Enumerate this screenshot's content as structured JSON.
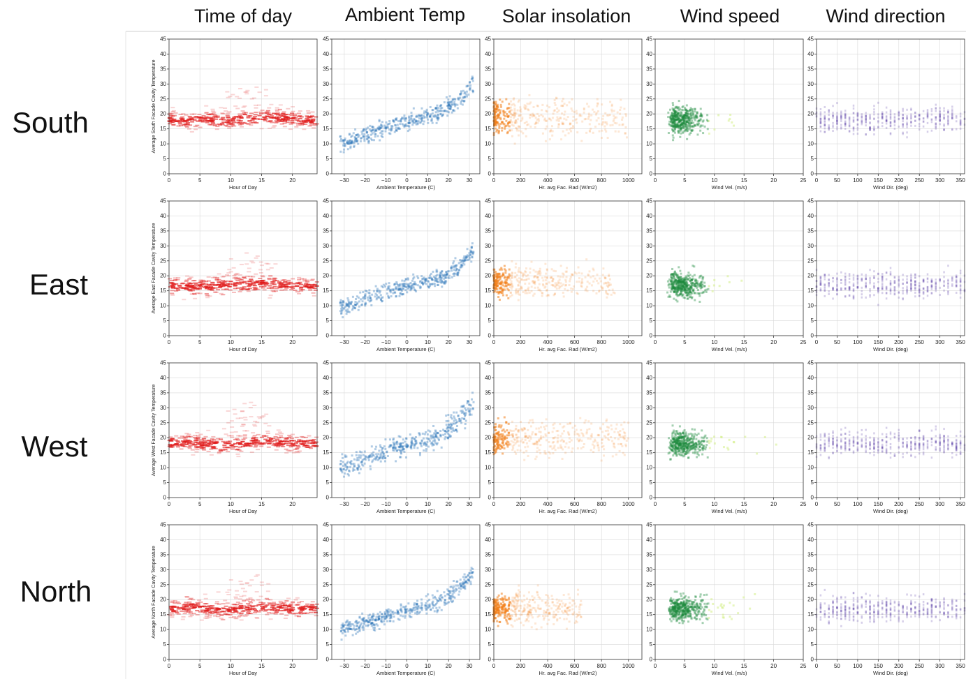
{
  "column_headers": [
    "Time of day",
    "Ambient Temp",
    "Solar insolation",
    "Wind speed",
    "Wind direction"
  ],
  "row_labels": [
    "South",
    "East",
    "West",
    "North"
  ],
  "colors": {
    "time": "#e01a1a",
    "ambient": "#1f6db5",
    "solar": "#f3801a",
    "wind_speed": "#1b8a3c",
    "wind_speed_light": "#d4ee88",
    "wind_dir": "#5a3fa6",
    "grid": "#d9d9d9"
  },
  "chart_data": {
    "type": "scatter",
    "y_ticks": [
      "0",
      "5",
      "10",
      "15",
      "20",
      "25",
      "30",
      "35",
      "40",
      "45"
    ],
    "ylim": [
      0,
      45
    ],
    "ylabels": [
      "Average South Facade Cavity Temperature",
      "Average East Facade Cavity Temperature",
      "Average West Facade Cavity Temperature",
      "Average North Facade Cavity Temperature"
    ],
    "x_axes": [
      {
        "key": "time",
        "label": "Hour of Day",
        "xlim": [
          0,
          24
        ],
        "ticks": [
          "0",
          "5",
          "10",
          "15",
          "20"
        ],
        "tick_values": [
          0,
          5,
          10,
          15,
          20
        ]
      },
      {
        "key": "ambient",
        "label": "Ambient Temperature (C)",
        "xlim": [
          -36,
          35
        ],
        "ticks": [
          "−30",
          "−20",
          "−10",
          "0",
          "10",
          "20",
          "30"
        ],
        "tick_values": [
          -30,
          -20,
          -10,
          0,
          10,
          20,
          30
        ]
      },
      {
        "key": "solar",
        "label": "Hr. avg Fac. Rad (W/m2)",
        "xlim": [
          0,
          1100
        ],
        "ticks": [
          "0",
          "200",
          "400",
          "600",
          "800",
          "1000"
        ],
        "tick_values": [
          0,
          200,
          400,
          600,
          800,
          1000
        ]
      },
      {
        "key": "wind_speed",
        "label": "Wind Vel. (m/s)",
        "xlim": [
          0,
          25
        ],
        "ticks": [
          "0",
          "5",
          "10",
          "15",
          "20",
          "25"
        ],
        "tick_values": [
          0,
          5,
          10,
          15,
          20,
          25
        ]
      },
      {
        "key": "wind_dir",
        "label": "Wind Dir. (deg)",
        "xlim": [
          0,
          360
        ],
        "ticks": [
          "0",
          "50",
          "100",
          "150",
          "200",
          "250",
          "300",
          "350"
        ],
        "tick_values": [
          0,
          50,
          100,
          150,
          200,
          250,
          300,
          350
        ]
      }
    ],
    "series": [
      {
        "row": "South",
        "time_band": {
          "center": [
            18,
            17.5,
            18,
            17.5,
            18.5,
            19,
            18.5,
            18
          ],
          "hours": [
            0,
            3,
            6,
            9,
            12,
            15,
            18,
            23
          ],
          "spread": 2.5,
          "peak": 30
        },
        "ambient_trend": {
          "x": [
            -30,
            -20,
            -10,
            0,
            8,
            15,
            25,
            32
          ],
          "y": [
            10,
            13,
            15.5,
            17.5,
            19,
            20,
            25,
            30
          ],
          "spread": 2
        },
        "solar_cloud": {
          "x_max": 1000,
          "y_center": 19,
          "spread": 4
        },
        "wind_speed_cloud": {
          "x_center": 4,
          "x_max": 22,
          "y_center": 18,
          "spread": 3
        },
        "wind_dir_cloud": {
          "y_center": 18,
          "spread": 3
        }
      },
      {
        "row": "East",
        "time_band": {
          "center": [
            17,
            16.5,
            16.5,
            17,
            17,
            17.5,
            17,
            16.5
          ],
          "hours": [
            0,
            3,
            6,
            9,
            12,
            15,
            18,
            23
          ],
          "spread": 2.5,
          "peak": 27
        },
        "ambient_trend": {
          "x": [
            -30,
            -20,
            -10,
            0,
            8,
            15,
            25,
            32
          ],
          "y": [
            10,
            12,
            14.5,
            16.5,
            18,
            19,
            23,
            28
          ],
          "spread": 2
        },
        "solar_cloud": {
          "x_max": 900,
          "y_center": 18,
          "spread": 3.5
        },
        "wind_speed_cloud": {
          "x_center": 4,
          "x_max": 20,
          "y_center": 17,
          "spread": 3
        },
        "wind_dir_cloud": {
          "y_center": 17,
          "spread": 3
        }
      },
      {
        "row": "West",
        "time_band": {
          "center": [
            18,
            18.5,
            18,
            17.5,
            18,
            19,
            18.5,
            18
          ],
          "hours": [
            0,
            3,
            6,
            9,
            12,
            15,
            18,
            23
          ],
          "spread": 2.5,
          "peak": 31
        },
        "ambient_trend": {
          "x": [
            -30,
            -20,
            -10,
            0,
            8,
            15,
            25,
            32
          ],
          "y": [
            10,
            13,
            15.5,
            17.5,
            19,
            20,
            26,
            32
          ],
          "spread": 2.5
        },
        "solar_cloud": {
          "x_max": 1000,
          "y_center": 20,
          "spread": 4
        },
        "wind_speed_cloud": {
          "x_center": 4,
          "x_max": 22,
          "y_center": 18,
          "spread": 3
        },
        "wind_dir_cloud": {
          "y_center": 18,
          "spread": 3
        }
      },
      {
        "row": "North",
        "time_band": {
          "center": [
            17,
            17.5,
            17,
            16.5,
            17,
            17.5,
            17,
            17
          ],
          "hours": [
            0,
            3,
            6,
            9,
            12,
            15,
            18,
            23
          ],
          "spread": 2.5,
          "peak": 29
        },
        "ambient_trend": {
          "x": [
            -30,
            -20,
            -10,
            0,
            8,
            15,
            25,
            32
          ],
          "y": [
            10,
            12,
            14.5,
            16.5,
            18,
            19,
            24,
            29
          ],
          "spread": 2
        },
        "solar_cloud": {
          "x_max": 650,
          "y_center": 17,
          "spread": 3.5
        },
        "wind_speed_cloud": {
          "x_center": 4,
          "x_max": 20,
          "y_center": 17,
          "spread": 3
        },
        "wind_dir_cloud": {
          "y_center": 17,
          "spread": 3
        }
      }
    ],
    "grid": true
  }
}
